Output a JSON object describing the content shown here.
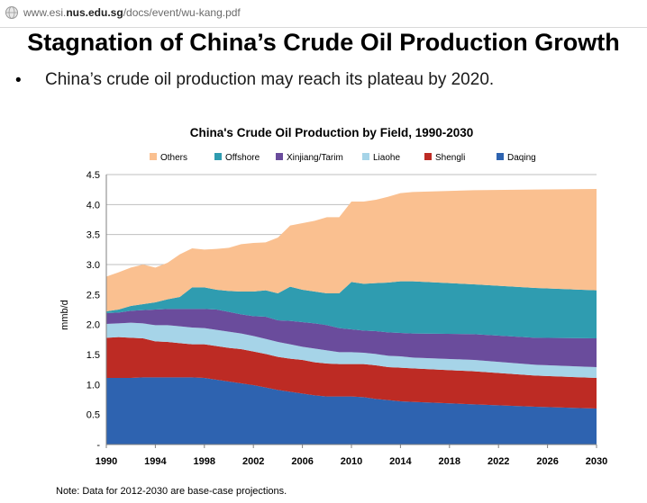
{
  "browser": {
    "url_prefix": "www.esi.",
    "url_domain": "nus.edu.sg",
    "url_path": "/docs/event/wu-kang.pdf"
  },
  "slide": {
    "title": "Stagnation of China’s Crude Oil Production Growth",
    "bullet_symbol": "•",
    "bullet": "China’s crude oil production may reach its plateau by 2020.",
    "note": "Note: Data for 2012-2030 are base-case projections."
  },
  "chart_data": {
    "type": "area",
    "stacked": true,
    "title": "China's Crude Oil Production by Field, 1990-2030",
    "xlabel": "",
    "ylabel": "mmb/d",
    "x": [
      1990,
      1991,
      1992,
      1993,
      1994,
      1995,
      1996,
      1997,
      1998,
      1999,
      2000,
      2001,
      2002,
      2003,
      2004,
      2005,
      2006,
      2007,
      2008,
      2009,
      2010,
      2011,
      2012,
      2013,
      2014,
      2015,
      2020,
      2025,
      2030
    ],
    "xticks": [
      "1990",
      "1994",
      "1998",
      "2002",
      "2006",
      "2010",
      "2014",
      "2018",
      "2022",
      "2026",
      "2030"
    ],
    "ylim": [
      0,
      4.5
    ],
    "yticks": [
      "-",
      "0.5",
      "1.0",
      "1.5",
      "2.0",
      "2.5",
      "3.0",
      "3.5",
      "4.0",
      "4.5"
    ],
    "grid": "horizontal",
    "legend_position": "top",
    "series": [
      {
        "name": "Daqing",
        "color": "#2e63b0",
        "values": [
          1.11,
          1.11,
          1.11,
          1.12,
          1.12,
          1.12,
          1.12,
          1.12,
          1.11,
          1.08,
          1.05,
          1.02,
          0.99,
          0.95,
          0.91,
          0.88,
          0.85,
          0.82,
          0.8,
          0.8,
          0.8,
          0.79,
          0.76,
          0.74,
          0.72,
          0.71,
          0.67,
          0.63,
          0.6
        ]
      },
      {
        "name": "Shengli",
        "color": "#bd2b24",
        "values": [
          0.67,
          0.68,
          0.67,
          0.65,
          0.6,
          0.59,
          0.57,
          0.55,
          0.56,
          0.56,
          0.56,
          0.57,
          0.56,
          0.56,
          0.55,
          0.55,
          0.56,
          0.55,
          0.55,
          0.54,
          0.54,
          0.55,
          0.56,
          0.55,
          0.56,
          0.56,
          0.55,
          0.52,
          0.51
        ]
      },
      {
        "name": "Liaohe",
        "color": "#a6d4e8",
        "values": [
          0.23,
          0.23,
          0.25,
          0.25,
          0.27,
          0.28,
          0.28,
          0.28,
          0.27,
          0.27,
          0.27,
          0.26,
          0.26,
          0.25,
          0.25,
          0.24,
          0.22,
          0.23,
          0.22,
          0.2,
          0.2,
          0.19,
          0.19,
          0.19,
          0.19,
          0.18,
          0.19,
          0.18,
          0.18
        ]
      },
      {
        "name": "Xinjiang/Tarim",
        "color": "#6a4c9c",
        "values": [
          0.18,
          0.18,
          0.2,
          0.22,
          0.26,
          0.27,
          0.29,
          0.31,
          0.32,
          0.34,
          0.33,
          0.32,
          0.33,
          0.37,
          0.36,
          0.39,
          0.41,
          0.42,
          0.42,
          0.4,
          0.38,
          0.37,
          0.38,
          0.39,
          0.39,
          0.4,
          0.43,
          0.45,
          0.48
        ]
      },
      {
        "name": "Offshore",
        "color": "#2f9cb0",
        "values": [
          0.03,
          0.05,
          0.08,
          0.1,
          0.12,
          0.16,
          0.2,
          0.36,
          0.36,
          0.33,
          0.35,
          0.38,
          0.41,
          0.44,
          0.45,
          0.57,
          0.54,
          0.53,
          0.53,
          0.58,
          0.79,
          0.78,
          0.8,
          0.83,
          0.86,
          0.87,
          0.83,
          0.83,
          0.8
        ]
      },
      {
        "name": "Others",
        "color": "#fac090",
        "values": [
          0.58,
          0.62,
          0.64,
          0.66,
          0.58,
          0.61,
          0.71,
          0.65,
          0.63,
          0.68,
          0.72,
          0.79,
          0.81,
          0.8,
          0.93,
          1.02,
          1.11,
          1.18,
          1.27,
          1.27,
          1.34,
          1.37,
          1.39,
          1.43,
          1.47,
          1.49,
          1.57,
          1.64,
          1.69
        ]
      }
    ],
    "legend_order": [
      "Others",
      "Offshore",
      "Xinjiang/Tarim",
      "Liaohe",
      "Shengli",
      "Daqing"
    ]
  }
}
